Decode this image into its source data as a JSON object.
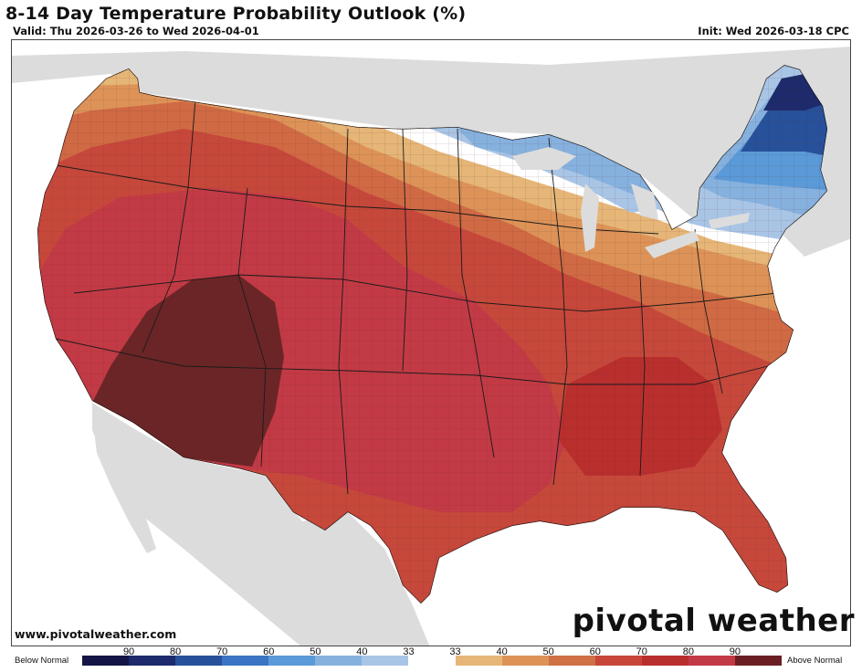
{
  "header": {
    "title": "8-14 Day Temperature Probability Outlook (%)",
    "valid": "Valid: Thu 2026-03-26 to Wed 2026-04-01",
    "init": "Init: Wed 2026-03-18 CPC"
  },
  "footer": {
    "website": "www.pivotalweather.com",
    "logo": "pivotal weather"
  },
  "legend": {
    "below_label": "Below Normal",
    "above_label": "Above Normal",
    "ticks": [
      "90",
      "80",
      "70",
      "60",
      "50",
      "40",
      "33",
      "33",
      "40",
      "50",
      "60",
      "70",
      "80",
      "90"
    ],
    "colors": [
      "#141545",
      "#1d2a6b",
      "#27519a",
      "#3b74c2",
      "#5b9ad8",
      "#86b1de",
      "#a9c5e6",
      "#ffffff",
      "#e6b678",
      "#dd9358",
      "#d07045",
      "#c8453a",
      "#b92f2e",
      "#c23a45",
      "#6b1f24"
    ]
  },
  "map": {
    "region": "Contiguous United States",
    "categories": [
      {
        "area": "Maine",
        "category": "Below Normal",
        "probability": "70-80"
      },
      {
        "area": "Northeast / New England",
        "category": "Below Normal",
        "probability": "50-70"
      },
      {
        "area": "Upper Great Lakes",
        "category": "Below Normal",
        "probability": "40-50"
      },
      {
        "area": "Northern Plains to Mid-Atlantic",
        "category": "Near Normal",
        "probability": "33"
      },
      {
        "area": "Pacific Northwest",
        "category": "Above Normal",
        "probability": "40-50"
      },
      {
        "area": "Central US / Southeast",
        "category": "Above Normal",
        "probability": "60-70"
      },
      {
        "area": "Southwest / Southern Plains",
        "category": "Above Normal",
        "probability": "70-80"
      },
      {
        "area": "Arizona / New Mexico",
        "category": "Above Normal",
        "probability": "80-90"
      }
    ]
  }
}
